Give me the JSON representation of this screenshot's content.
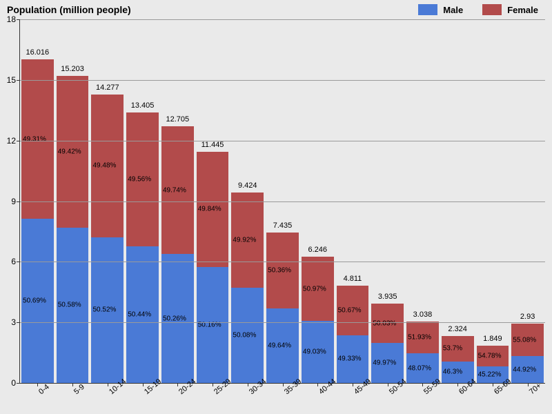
{
  "chart": {
    "type": "stacked-bar",
    "title": "Population (million people)",
    "title_fontsize": 14,
    "background_color": "#eaeaea",
    "plot_background": "#eaeaea",
    "grid_color": "#9a9a9a",
    "axis_color": "#333333",
    "label_fontsize": 11,
    "pct_fontsize": 10,
    "yaxis": {
      "min": 0,
      "max": 18,
      "tick_step": 3,
      "ticks": [
        0,
        3,
        6,
        9,
        12,
        15,
        18
      ]
    },
    "legend": {
      "items": [
        {
          "label": "Male",
          "color": "#4a7ad6"
        },
        {
          "label": "Female",
          "color": "#b24b4b"
        }
      ]
    },
    "categories": [
      "0-4",
      "5-9",
      "10-14",
      "15-19",
      "20-24",
      "25-29",
      "30-34",
      "35-39",
      "40-44",
      "45-49",
      "50-54",
      "55-59",
      "60-64",
      "65-69",
      "70+"
    ],
    "series": [
      {
        "name": "Male",
        "color": "#4a7ad6",
        "pct": [
          50.69,
          50.58,
          50.52,
          50.44,
          50.26,
          50.16,
          50.08,
          49.64,
          49.03,
          49.33,
          49.97,
          48.07,
          46.3,
          45.22,
          44.92
        ]
      },
      {
        "name": "Female",
        "color": "#b24b4b",
        "pct": [
          49.31,
          49.42,
          49.48,
          49.56,
          49.74,
          49.84,
          49.92,
          50.36,
          50.97,
          50.67,
          50.03,
          51.93,
          53.7,
          54.78,
          55.08
        ]
      }
    ],
    "totals": [
      16.016,
      15.203,
      14.277,
      13.405,
      12.705,
      11.445,
      9.424,
      7.435,
      6.246,
      4.811,
      3.935,
      3.038,
      2.324,
      1.849,
      2.93
    ],
    "bar_gap_ratio": 0.08
  }
}
